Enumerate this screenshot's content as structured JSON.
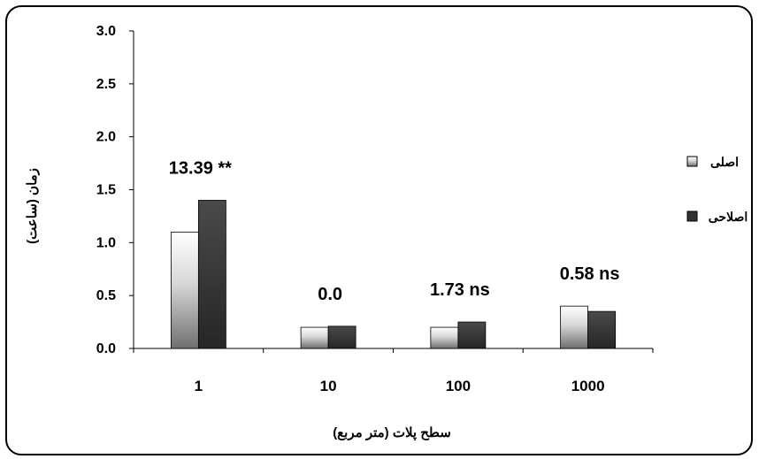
{
  "chart_data": {
    "type": "bar",
    "title": "",
    "xlabel": "سطح پلات (متر مربع)",
    "ylabel": "زمان (ساعت)",
    "ylim": [
      0,
      3.0
    ],
    "yticks": [
      "0.0",
      "0.5",
      "1.0",
      "1.5",
      "2.0",
      "2.5",
      "3.0"
    ],
    "categories": [
      "1",
      "10",
      "100",
      "1000"
    ],
    "series": [
      {
        "name": "اصلی",
        "values": [
          1.1,
          0.2,
          0.2,
          0.4
        ]
      },
      {
        "name": "اصلاحی",
        "values": [
          1.4,
          0.21,
          0.25,
          0.35
        ]
      }
    ],
    "annotations": [
      "13.39 **",
      "0.0",
      "1.73 ns",
      "0.58 ns"
    ],
    "legend_position": "right",
    "grid": false,
    "colors": {
      "series1_top": "#ffffff",
      "series1_bottom": "#7a7a7a",
      "series2_top": "#444444",
      "series2_bottom": "#222222",
      "axis": "#000000"
    }
  }
}
